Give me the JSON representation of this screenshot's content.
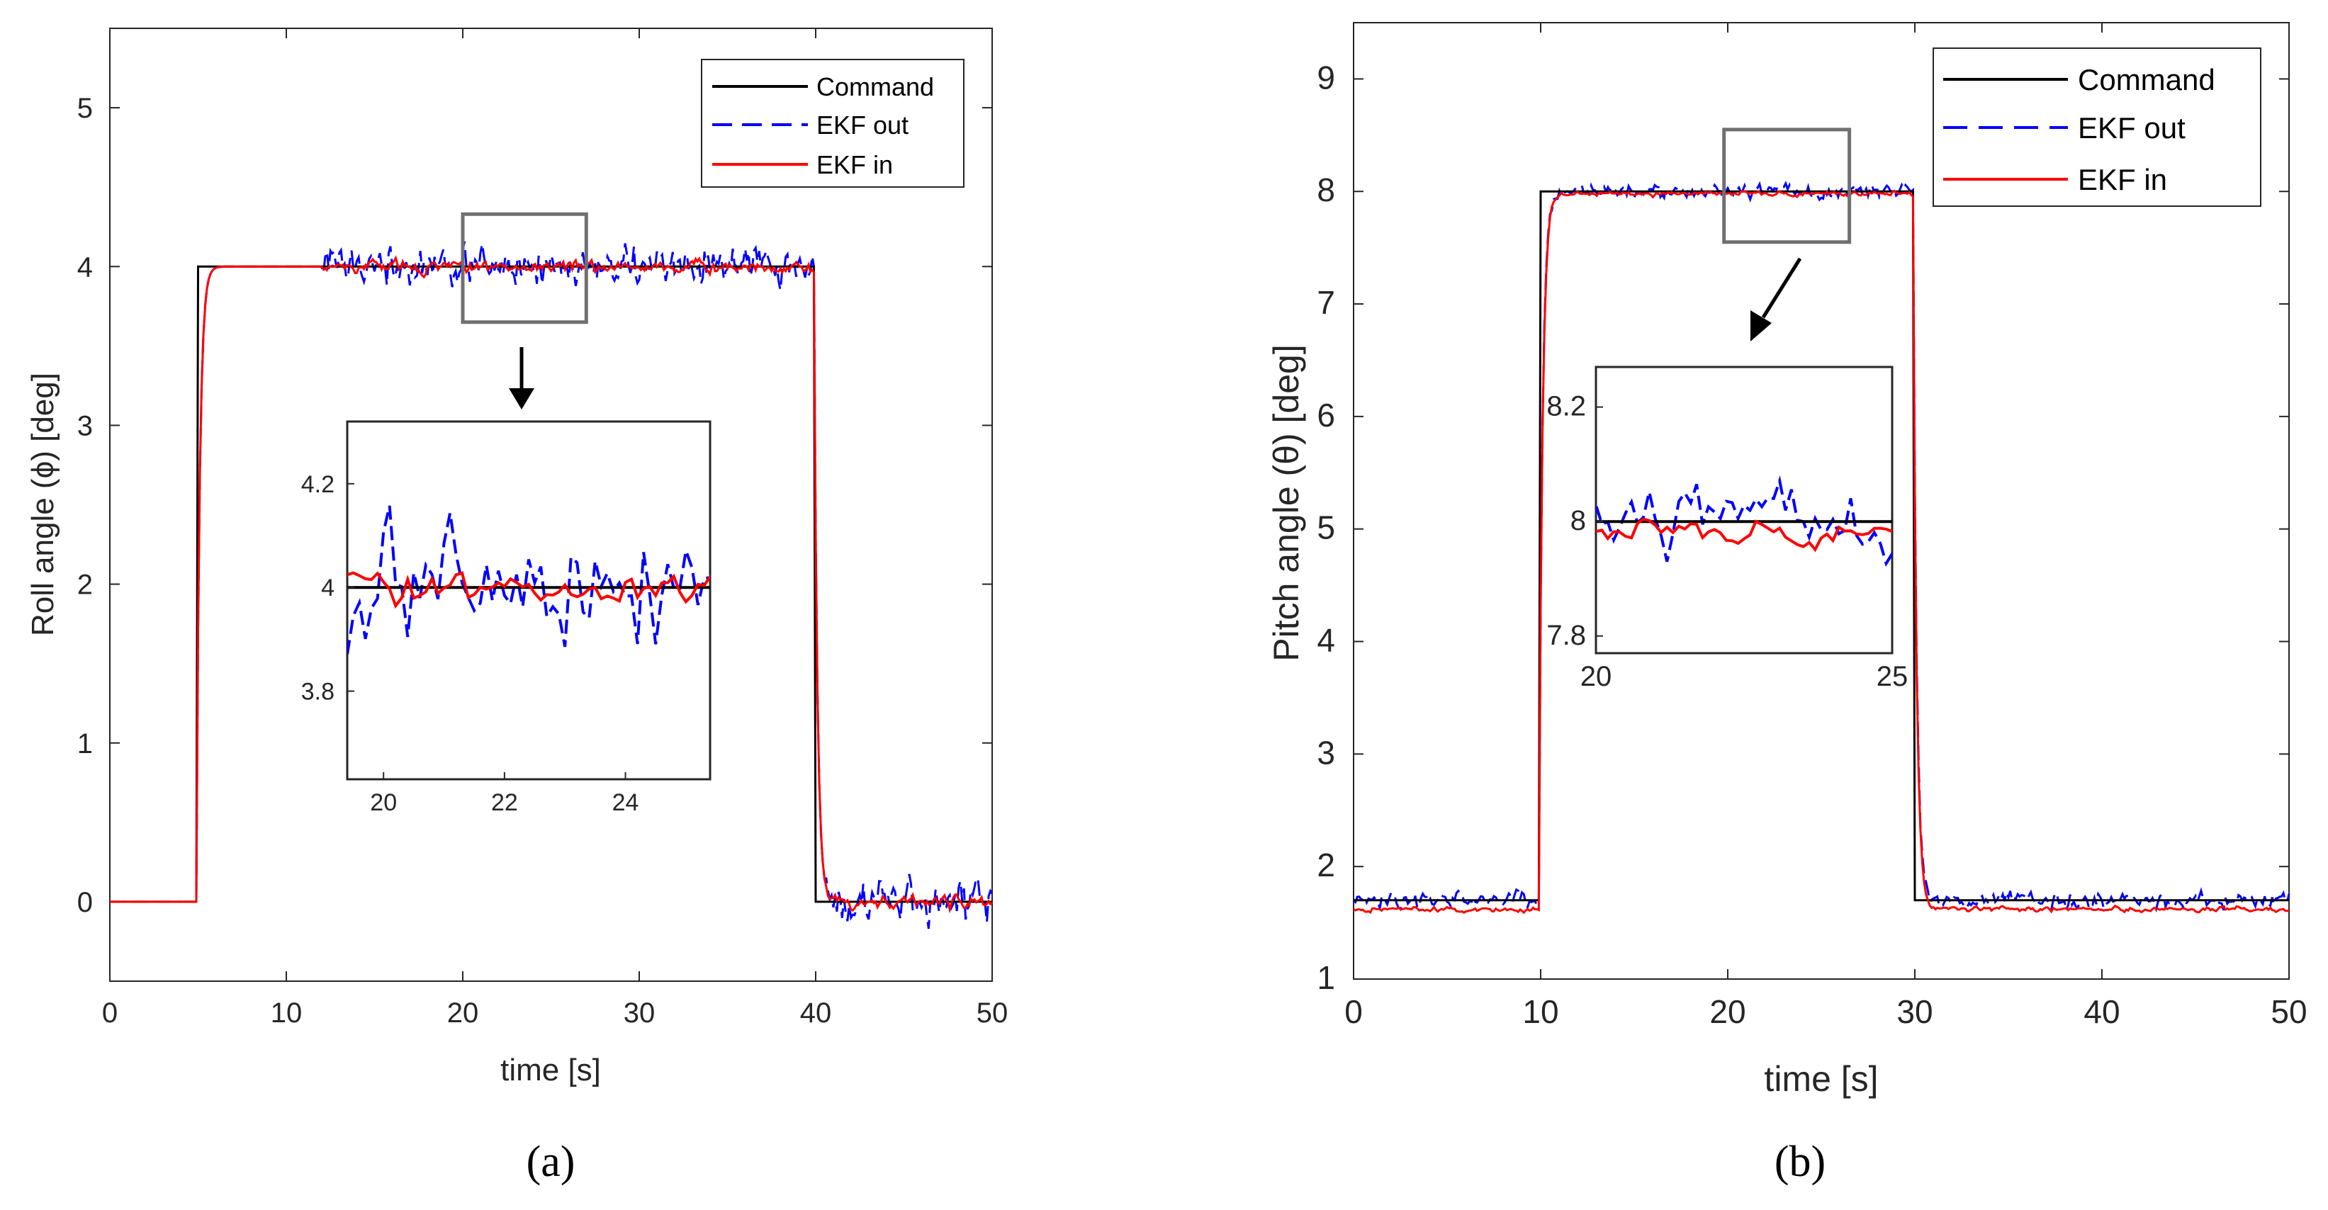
{
  "figure": {
    "panel_labels": [
      "(a)",
      "(b)"
    ]
  },
  "legend_entries": [
    "Command",
    "EKF out",
    "EKF in"
  ],
  "colors": {
    "command": "#000000",
    "ekf_out": "#0000ff",
    "ekf_in": "#ff0000",
    "zoom_box": "#707070"
  },
  "chart_data": [
    {
      "type": "line",
      "panel": "(a)",
      "title": "",
      "xlabel": "time [s]",
      "ylabel": "Roll angle (ϕ) [deg]",
      "xlim": [
        0,
        50
      ],
      "ylim": [
        -0.5,
        5.5
      ],
      "xticks": [
        0,
        10,
        20,
        30,
        40,
        50
      ],
      "yticks": [
        0,
        1,
        2,
        3,
        4,
        5
      ],
      "legend": "top-right",
      "series": [
        {
          "name": "Command",
          "style": "solid",
          "step": {
            "t_on": 5,
            "t_off": 40,
            "low": 0,
            "high": 4
          }
        },
        {
          "name": "EKF out",
          "style": "dashed",
          "step": {
            "t_on": 5,
            "t_off": 40,
            "low": 0,
            "high": 4
          },
          "noise_sd": 0.09
        },
        {
          "name": "EKF in",
          "style": "solid",
          "step": {
            "t_on": 5,
            "t_off": 40,
            "low": 0,
            "high": 4
          },
          "noise_sd": 0.04
        }
      ],
      "zoom_box": {
        "x": [
          20,
          27
        ],
        "y": [
          3.65,
          4.33
        ]
      },
      "inset": {
        "xlim": [
          19.4,
          25.4
        ],
        "ylim": [
          3.63,
          4.32
        ],
        "xticks": [
          20,
          22,
          24
        ],
        "yticks": [
          3.8,
          4,
          4.2
        ],
        "ytick_labels": [
          "3.8",
          "4",
          "4.2"
        ]
      }
    },
    {
      "type": "line",
      "panel": "(b)",
      "title": "",
      "xlabel": "time [s]",
      "ylabel": "Pitch angle (θ) [deg]",
      "xlim": [
        0,
        50
      ],
      "ylim": [
        1,
        9.5
      ],
      "xticks": [
        0,
        10,
        20,
        30,
        40,
        50
      ],
      "yticks": [
        1,
        2,
        3,
        4,
        5,
        6,
        7,
        8,
        9
      ],
      "legend": "top-right",
      "series": [
        {
          "name": "Command",
          "style": "solid",
          "step": {
            "t_on": 10,
            "t_off": 30,
            "low": 1.7,
            "high": 8
          }
        },
        {
          "name": "EKF out",
          "style": "dashed",
          "step": {
            "t_on": 10,
            "t_off": 30,
            "low": 1.7,
            "high": 8
          },
          "noise_sd": 0.05
        },
        {
          "name": "EKF in",
          "style": "solid",
          "step": {
            "t_on": 10,
            "t_off": 30,
            "low": 1.62,
            "high": 7.98
          },
          "noise_sd": 0.025
        }
      ],
      "zoom_box": {
        "x": [
          19.8,
          26.5
        ],
        "y": [
          7.55,
          8.55
        ]
      },
      "inset": {
        "xlim": [
          20,
          25
        ],
        "ylim": [
          7.77,
          8.27
        ],
        "xticks": [
          20,
          25
        ],
        "yticks": [
          7.8,
          8,
          8.2
        ],
        "ytick_labels": [
          "7.8",
          "8",
          "8.2"
        ]
      }
    }
  ]
}
